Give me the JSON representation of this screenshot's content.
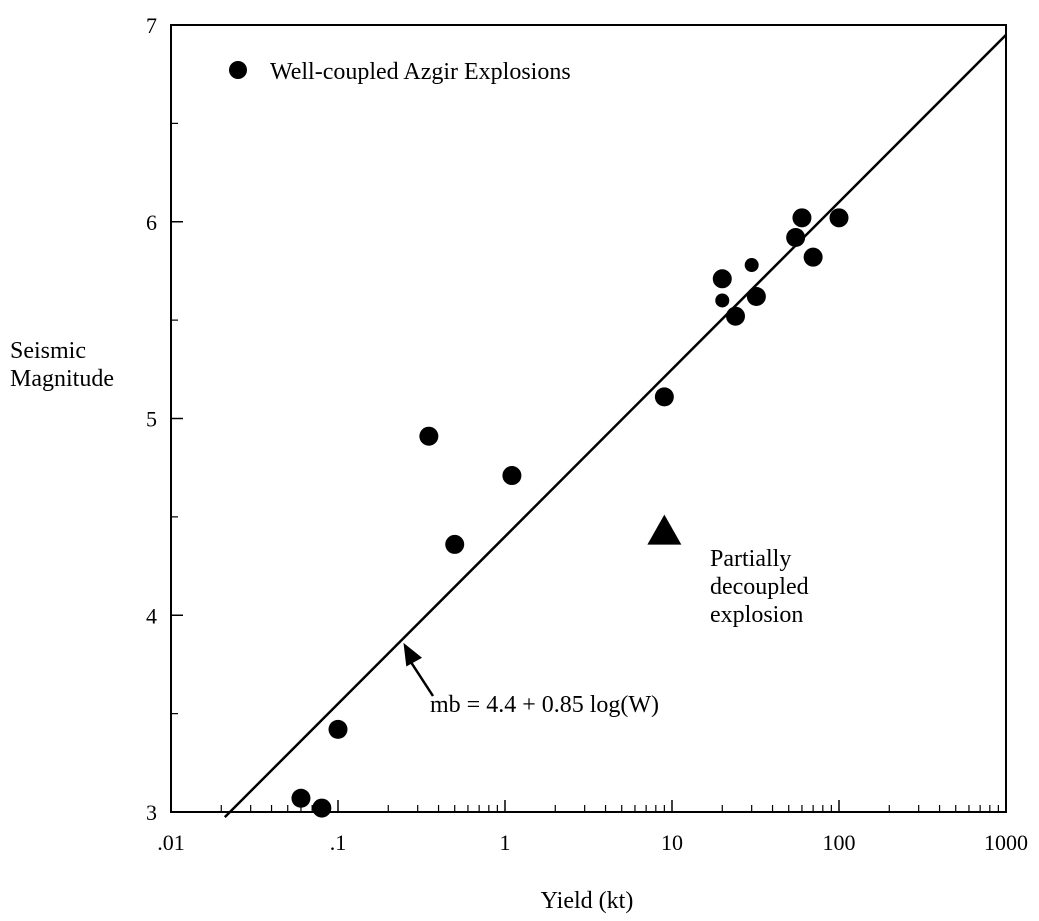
{
  "chart_data": {
    "type": "scatter",
    "x_scale": "log",
    "xlabel": "Yield (kt)",
    "ylabel_lines": [
      "Seismic",
      "Magnitude"
    ],
    "xlim": [
      0.01,
      1000
    ],
    "ylim": [
      3,
      7
    ],
    "x_ticks": [
      0.01,
      0.1,
      1,
      10,
      100,
      1000
    ],
    "x_tick_labels": [
      ".01",
      ".1",
      "1",
      "10",
      "100",
      "1000"
    ],
    "y_ticks": [
      3,
      4,
      5,
      6,
      7
    ],
    "y_tick_labels": [
      "3",
      "4",
      "5",
      "6",
      "7"
    ],
    "grid": false,
    "legend": {
      "placement": "top-left",
      "label": "Well-coupled Azgir Explosions"
    },
    "series": [
      {
        "name": "Well-coupled Azgir Explosions",
        "marker": "circle",
        "color": "#000000",
        "points": [
          {
            "x": 0.06,
            "y": 3.07
          },
          {
            "x": 0.08,
            "y": 3.02
          },
          {
            "x": 0.1,
            "y": 3.42
          },
          {
            "x": 0.35,
            "y": 4.91
          },
          {
            "x": 0.5,
            "y": 4.36
          },
          {
            "x": 1.1,
            "y": 4.71
          },
          {
            "x": 9,
            "y": 5.11
          },
          {
            "x": 20,
            "y": 5.71
          },
          {
            "x": 20,
            "y": 5.6
          },
          {
            "x": 24,
            "y": 5.52
          },
          {
            "x": 30,
            "y": 5.78
          },
          {
            "x": 32,
            "y": 5.62
          },
          {
            "x": 55,
            "y": 5.92
          },
          {
            "x": 60,
            "y": 6.02
          },
          {
            "x": 70,
            "y": 5.82
          },
          {
            "x": 100,
            "y": 6.02
          }
        ]
      },
      {
        "name": "Partially decoupled explosion",
        "marker": "triangle",
        "color": "#000000",
        "points": [
          {
            "x": 9,
            "y": 4.42
          }
        ]
      }
    ],
    "fit_line": {
      "intercept": 4.4,
      "slope": 0.85,
      "x_range": [
        0.021,
        1000
      ]
    },
    "annotations": {
      "equation": "mb = 4.4 + 0.85 log(W)",
      "equation_arrow_target": {
        "x": 0.24,
        "y": 3.88
      },
      "decoupled_label_lines": [
        "Partially",
        "decoupled",
        "explosion"
      ]
    }
  }
}
